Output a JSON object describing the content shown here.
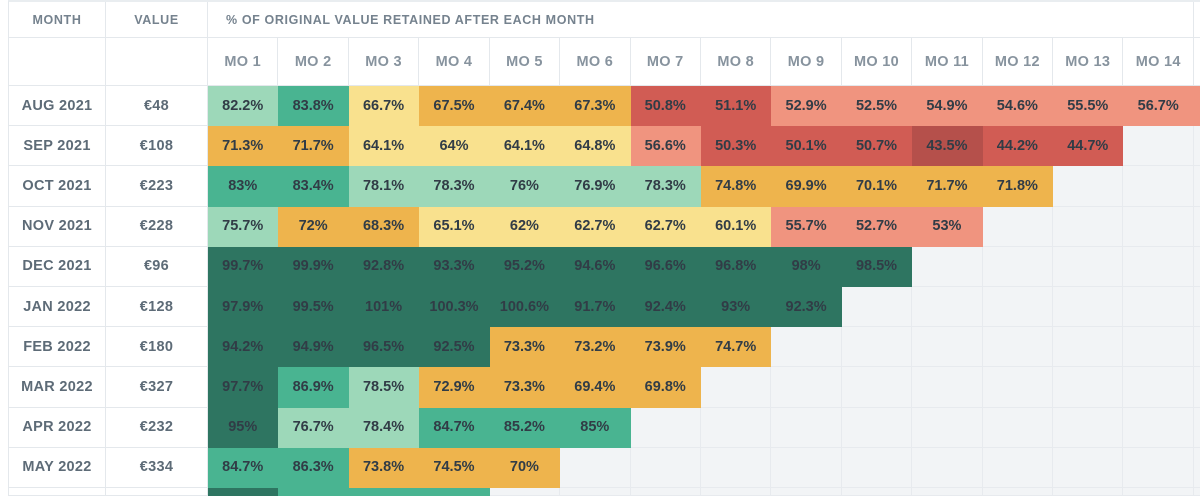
{
  "chart_data": {
    "type": "heatmap",
    "title": "% OF ORIGINAL VALUE RETAINED AFTER EACH MONTH",
    "header": {
      "month": "MONTH",
      "value": "VALUE"
    },
    "columns": [
      "MO 1",
      "MO 2",
      "MO 3",
      "MO 4",
      "MO 5",
      "MO 6",
      "MO 7",
      "MO 8",
      "MO 9",
      "MO 10",
      "MO 11",
      "MO 12",
      "MO 13",
      "MO 14"
    ],
    "palette": {
      "lightgreen": "#9dd8b9",
      "teal": "#49b491",
      "darkgreen": "#2e7561",
      "lightyellow": "#f9e18e",
      "orange": "#eeb44d",
      "salmon": "#f0947f",
      "red": "#d15c54",
      "darkred": "#b5504b"
    },
    "empty_cell_color": "#f2f4f6",
    "grid_border_color": "#e4e8ec",
    "rows": [
      {
        "month": "AUG 2021",
        "value": "€48",
        "cells": [
          [
            "82.2%",
            "lightgreen"
          ],
          [
            "83.8%",
            "teal"
          ],
          [
            "66.7%",
            "lightyellow"
          ],
          [
            "67.5%",
            "orange"
          ],
          [
            "67.4%",
            "orange"
          ],
          [
            "67.3%",
            "orange"
          ],
          [
            "50.8%",
            "red"
          ],
          [
            "51.1%",
            "red"
          ],
          [
            "52.9%",
            "salmon"
          ],
          [
            "52.5%",
            "salmon"
          ],
          [
            "54.9%",
            "salmon"
          ],
          [
            "54.6%",
            "salmon"
          ],
          [
            "55.5%",
            "salmon"
          ],
          [
            "56.7%",
            "salmon"
          ]
        ],
        "sliver": "salmon"
      },
      {
        "month": "SEP 2021",
        "value": "€108",
        "cells": [
          [
            "71.3%",
            "orange"
          ],
          [
            "71.7%",
            "orange"
          ],
          [
            "64.1%",
            "lightyellow"
          ],
          [
            "64%",
            "lightyellow"
          ],
          [
            "64.1%",
            "lightyellow"
          ],
          [
            "64.8%",
            "lightyellow"
          ],
          [
            "56.6%",
            "salmon"
          ],
          [
            "50.3%",
            "red"
          ],
          [
            "50.1%",
            "red"
          ],
          [
            "50.7%",
            "red"
          ],
          [
            "43.5%",
            "darkred"
          ],
          [
            "44.2%",
            "red"
          ],
          [
            "44.7%",
            "red"
          ]
        ],
        "sliver": null
      },
      {
        "month": "OCT 2021",
        "value": "€223",
        "cells": [
          [
            "83%",
            "teal"
          ],
          [
            "83.4%",
            "teal"
          ],
          [
            "78.1%",
            "lightgreen"
          ],
          [
            "78.3%",
            "lightgreen"
          ],
          [
            "76%",
            "lightgreen"
          ],
          [
            "76.9%",
            "lightgreen"
          ],
          [
            "78.3%",
            "lightgreen"
          ],
          [
            "74.8%",
            "orange"
          ],
          [
            "69.9%",
            "orange"
          ],
          [
            "70.1%",
            "orange"
          ],
          [
            "71.7%",
            "orange"
          ],
          [
            "71.8%",
            "orange"
          ]
        ],
        "sliver": null
      },
      {
        "month": "NOV 2021",
        "value": "€228",
        "cells": [
          [
            "75.7%",
            "lightgreen"
          ],
          [
            "72%",
            "orange"
          ],
          [
            "68.3%",
            "orange"
          ],
          [
            "65.1%",
            "lightyellow"
          ],
          [
            "62%",
            "lightyellow"
          ],
          [
            "62.7%",
            "lightyellow"
          ],
          [
            "62.7%",
            "lightyellow"
          ],
          [
            "60.1%",
            "lightyellow"
          ],
          [
            "55.7%",
            "salmon"
          ],
          [
            "52.7%",
            "salmon"
          ],
          [
            "53%",
            "salmon"
          ]
        ],
        "sliver": null
      },
      {
        "month": "DEC 2021",
        "value": "€96",
        "cells": [
          [
            "99.7%",
            "darkgreen"
          ],
          [
            "99.9%",
            "darkgreen"
          ],
          [
            "92.8%",
            "darkgreen"
          ],
          [
            "93.3%",
            "darkgreen"
          ],
          [
            "95.2%",
            "darkgreen"
          ],
          [
            "94.6%",
            "darkgreen"
          ],
          [
            "96.6%",
            "darkgreen"
          ],
          [
            "96.8%",
            "darkgreen"
          ],
          [
            "98%",
            "darkgreen"
          ],
          [
            "98.5%",
            "darkgreen"
          ]
        ],
        "sliver": null
      },
      {
        "month": "JAN 2022",
        "value": "€128",
        "cells": [
          [
            "97.9%",
            "darkgreen"
          ],
          [
            "99.5%",
            "darkgreen"
          ],
          [
            "101%",
            "darkgreen"
          ],
          [
            "100.3%",
            "darkgreen"
          ],
          [
            "100.6%",
            "darkgreen"
          ],
          [
            "91.7%",
            "darkgreen"
          ],
          [
            "92.4%",
            "darkgreen"
          ],
          [
            "93%",
            "darkgreen"
          ],
          [
            "92.3%",
            "darkgreen"
          ]
        ],
        "sliver": null
      },
      {
        "month": "FEB 2022",
        "value": "€180",
        "cells": [
          [
            "94.2%",
            "darkgreen"
          ],
          [
            "94.9%",
            "darkgreen"
          ],
          [
            "96.5%",
            "darkgreen"
          ],
          [
            "92.5%",
            "darkgreen"
          ],
          [
            "73.3%",
            "orange"
          ],
          [
            "73.2%",
            "orange"
          ],
          [
            "73.9%",
            "orange"
          ],
          [
            "74.7%",
            "orange"
          ]
        ],
        "sliver": null
      },
      {
        "month": "MAR 2022",
        "value": "€327",
        "cells": [
          [
            "97.7%",
            "darkgreen"
          ],
          [
            "86.9%",
            "teal"
          ],
          [
            "78.5%",
            "lightgreen"
          ],
          [
            "72.9%",
            "orange"
          ],
          [
            "73.3%",
            "orange"
          ],
          [
            "69.4%",
            "orange"
          ],
          [
            "69.8%",
            "orange"
          ]
        ],
        "sliver": null
      },
      {
        "month": "APR 2022",
        "value": "€232",
        "cells": [
          [
            "95%",
            "darkgreen"
          ],
          [
            "76.7%",
            "lightgreen"
          ],
          [
            "78.4%",
            "lightgreen"
          ],
          [
            "84.7%",
            "teal"
          ],
          [
            "85.2%",
            "teal"
          ],
          [
            "85%",
            "teal"
          ]
        ],
        "sliver": null
      },
      {
        "month": "MAY 2022",
        "value": "€334",
        "cells": [
          [
            "84.7%",
            "teal"
          ],
          [
            "86.3%",
            "teal"
          ],
          [
            "73.8%",
            "orange"
          ],
          [
            "74.5%",
            "orange"
          ],
          [
            "70%",
            "orange"
          ]
        ],
        "sliver": null
      },
      {
        "month": "",
        "value": "",
        "partial": true,
        "cells": [
          [
            "",
            "darkgreen"
          ],
          [
            "",
            "teal"
          ],
          [
            "",
            "teal"
          ],
          [
            "",
            "teal"
          ]
        ],
        "sliver": null
      }
    ]
  }
}
